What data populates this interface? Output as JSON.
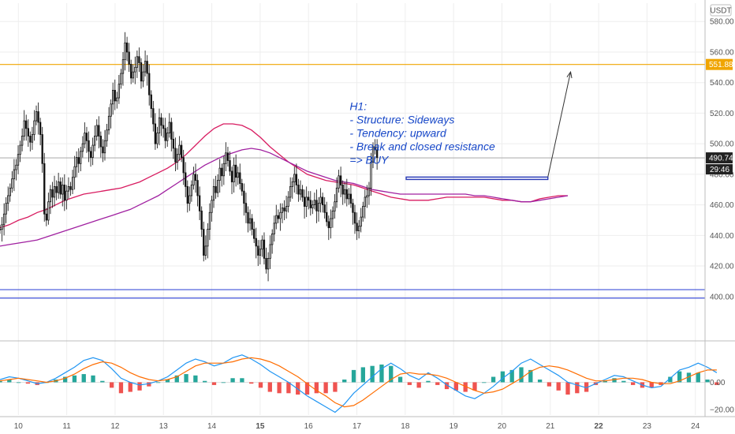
{
  "chart_data": {
    "type": "candlestick",
    "currency_label": "USDT",
    "price_axis": {
      "ylim": [
        372,
        592
      ],
      "ticks": [
        400,
        420,
        440,
        460,
        480,
        500,
        520,
        540,
        560,
        580
      ],
      "tick_labels": [
        "400.00",
        "420.00",
        "440.00",
        "460.00",
        "480.00",
        "500.00",
        "520.00",
        "540.00",
        "560.00",
        "580.00"
      ]
    },
    "time_axis": {
      "range": [
        9.62,
        24.2
      ],
      "ticks": [
        10,
        11,
        12,
        13,
        14,
        15,
        16,
        17,
        18,
        19,
        20,
        21,
        22,
        23,
        24
      ],
      "labels": [
        "10",
        "11",
        "12",
        "13",
        "14",
        "15",
        "16",
        "17",
        "18",
        "19",
        "20",
        "21",
        "22",
        "23",
        "24"
      ],
      "bold_labels": [
        "15",
        "22"
      ]
    },
    "candles_hourly": [
      444,
      447,
      454,
      461,
      466,
      471,
      477,
      483,
      486,
      493,
      499,
      505,
      515,
      510,
      505,
      501,
      506,
      515,
      521,
      514,
      506,
      487,
      454,
      450,
      462,
      470,
      465,
      472,
      468,
      475,
      467,
      473,
      463,
      469,
      472,
      470,
      478,
      485,
      491,
      487,
      495,
      500,
      507,
      502,
      495,
      491,
      499,
      505,
      512,
      505,
      498,
      494,
      502,
      509,
      518,
      526,
      535,
      528,
      530,
      539,
      546,
      555,
      566,
      560,
      552,
      543,
      547,
      550,
      557,
      553,
      541,
      547,
      554,
      546,
      532,
      523,
      513,
      500,
      507,
      517,
      512,
      510,
      502,
      507,
      514,
      503,
      497,
      488,
      493,
      499,
      491,
      481,
      472,
      461,
      466,
      473,
      480,
      476,
      466,
      456,
      444,
      427,
      433,
      444,
      455,
      463,
      472,
      468,
      476,
      484,
      479,
      487,
      494,
      489,
      482,
      475,
      486,
      478,
      481,
      474,
      469,
      461,
      455,
      448,
      451,
      444,
      438,
      433,
      427,
      431,
      437,
      425,
      418,
      425,
      434,
      441,
      448,
      453,
      451,
      455,
      458,
      456,
      459,
      465,
      472,
      475,
      480,
      473,
      467,
      470,
      465,
      459,
      465,
      463,
      458,
      460,
      463,
      456,
      461,
      465,
      460,
      455,
      449,
      445,
      451,
      456,
      462,
      471,
      479,
      473,
      467,
      470,
      464,
      467,
      461,
      455,
      448,
      443,
      446,
      452,
      459,
      465,
      466,
      471,
      488,
      498,
      496,
      491
    ],
    "candles_start_x": 9.62,
    "candles_step": 0.0417,
    "moving_averages": [
      {
        "color": "#d81b60",
        "values": [
          445,
          447,
          450,
          452,
          455,
          457,
          460,
          463,
          465,
          467,
          468,
          469,
          470,
          471,
          473,
          475,
          478,
          481,
          484,
          488,
          493,
          499,
          505,
          510,
          513,
          513,
          512,
          509,
          504,
          498,
          493,
          488,
          484,
          480,
          478,
          476,
          475,
          474,
          473,
          471,
          469,
          467,
          465,
          464,
          463,
          463,
          463,
          464,
          465,
          465,
          465,
          465,
          465,
          464,
          463,
          463,
          462,
          462,
          464,
          465,
          466,
          466
        ]
      },
      {
        "color": "#a020a0",
        "values": [
          433,
          434,
          435,
          436,
          437,
          439,
          441,
          443,
          445,
          447,
          449,
          451,
          453,
          455,
          457,
          460,
          463,
          466,
          470,
          474,
          478,
          482,
          486,
          489,
          492,
          494,
          496,
          497,
          496,
          494,
          491,
          488,
          485,
          482,
          480,
          478,
          476,
          475,
          474,
          472,
          470,
          469,
          468,
          467,
          467,
          467,
          467,
          467,
          467,
          467,
          467,
          466,
          466,
          465,
          464,
          463,
          462,
          462,
          463,
          464,
          465,
          466
        ]
      }
    ],
    "ma_start_x": 9.62,
    "ma_step": 0.1925,
    "horizontal_levels": [
      {
        "price": 551.88,
        "color": "#f0a500",
        "label": "551.88"
      },
      {
        "price": 404.5,
        "color": "#3f51d8"
      },
      {
        "price": 399,
        "color": "#3f51d8"
      }
    ],
    "current_price": {
      "price": 490.74,
      "label": "490.74",
      "countdown": "29:46"
    },
    "resistance_box": {
      "x0": 18.02,
      "x1": 20.95,
      "p_low": 476.6,
      "p_high": 478.2
    },
    "projection_arrow": {
      "x0": 20.95,
      "p0": 478.2,
      "x1": 21.42,
      "p1": 547
    },
    "annotation": {
      "lines": [
        "H1:",
        "- Structure: Sideways",
        "- Tendency: upward",
        "- Break and closed resistance",
        "=> BUY"
      ],
      "x": 16.85,
      "p": 524
    },
    "macd": {
      "ylim": [
        -24,
        28
      ],
      "tick_labels": [
        {
          "value": 0,
          "label": "0.00"
        },
        {
          "value": -20,
          "label": "−20.00"
        }
      ],
      "start_x": 9.62,
      "step": 0.1925,
      "macd_line": [
        2,
        4,
        3,
        1,
        -1,
        0,
        3,
        7,
        11,
        16,
        18,
        16,
        10,
        3,
        0,
        -2,
        -1,
        1,
        4,
        9,
        14,
        17,
        15,
        12,
        14,
        18,
        20,
        17,
        13,
        8,
        4,
        0,
        -5,
        -10,
        -14,
        -18,
        -22,
        -16,
        -8,
        -2,
        4,
        10,
        14,
        10,
        5,
        2,
        7,
        3,
        -2,
        -6,
        -10,
        -12,
        -8,
        -3,
        3,
        8,
        14,
        17,
        13,
        9,
        5,
        0,
        -2,
        -4,
        -1,
        2,
        5,
        4,
        1,
        -2,
        -4,
        -3,
        3,
        9,
        11,
        14,
        11,
        7
      ],
      "signal_line": [
        1,
        2,
        3,
        2,
        1,
        0,
        1,
        3,
        6,
        10,
        13,
        15,
        14,
        11,
        7,
        4,
        2,
        1,
        2,
        4,
        8,
        12,
        14,
        14,
        14,
        15,
        17,
        18,
        17,
        15,
        12,
        8,
        4,
        -1,
        -6,
        -10,
        -15,
        -18,
        -17,
        -13,
        -8,
        -3,
        2,
        6,
        7,
        6,
        6,
        5,
        3,
        0,
        -3,
        -6,
        -8,
        -7,
        -5,
        -1,
        3,
        8,
        11,
        12,
        11,
        9,
        6,
        3,
        1,
        1,
        2,
        3,
        3,
        2,
        0,
        -1,
        -1,
        1,
        4,
        7,
        9,
        9
      ],
      "histogram": [
        1,
        2,
        0,
        -1,
        -2,
        0,
        2,
        4,
        5,
        6,
        5,
        1,
        -4,
        -8,
        -7,
        -6,
        -3,
        0,
        2,
        5,
        6,
        5,
        1,
        -2,
        0,
        3,
        3,
        -1,
        -4,
        -7,
        -8,
        -8,
        -9,
        -9,
        -8,
        -8,
        -7,
        2,
        9,
        11,
        12,
        13,
        12,
        4,
        -2,
        -4,
        1,
        -2,
        -5,
        -6,
        -7,
        -6,
        0,
        4,
        8,
        9,
        11,
        9,
        2,
        -3,
        -6,
        -9,
        -8,
        -7,
        -2,
        1,
        3,
        1,
        -2,
        -4,
        -4,
        -2,
        4,
        8,
        7,
        7,
        2,
        -2
      ],
      "colors": {
        "macd": "#2196f3",
        "signal": "#ff6d00",
        "hist_up": "#26a69a",
        "hist_down": "#ef5350"
      }
    },
    "colors": {
      "candle_up": "#000000",
      "candle_down": "#000000",
      "grid": "#eeeeee",
      "axis_line": "#cccccc"
    }
  }
}
